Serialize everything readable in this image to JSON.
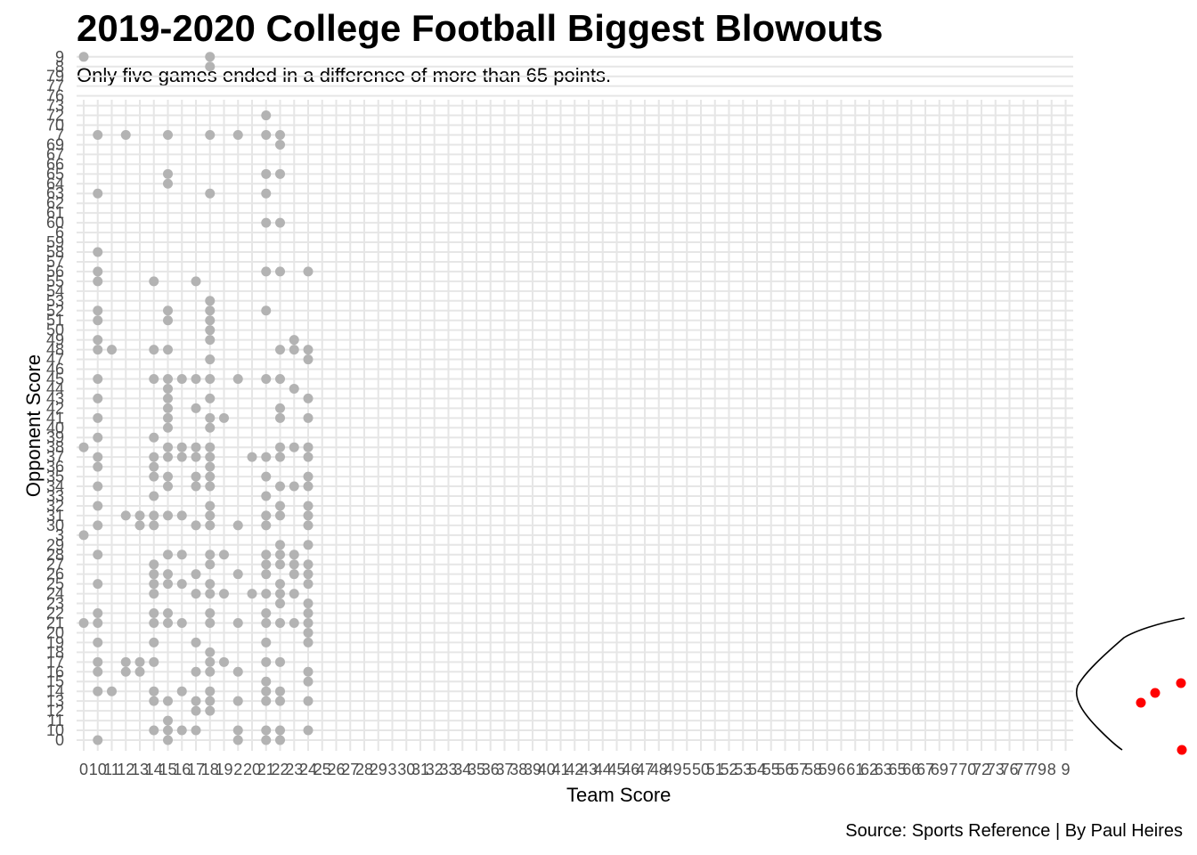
{
  "chart_data": {
    "type": "scatter",
    "title": "2019-2020 College Football Biggest Blowouts",
    "subtitle": "Only five games ended in a difference of more than 65 points.",
    "caption": "Source: Sports Reference | By Paul Heires",
    "xlabel": "Team Score",
    "ylabel": "Opponent Score",
    "x_categories": [
      "0",
      "10",
      "11",
      "12",
      "13",
      "14",
      "15",
      "16",
      "17",
      "18",
      "19",
      "2",
      "20",
      "21",
      "22",
      "23",
      "24",
      "25",
      "26",
      "27",
      "28",
      "29",
      "3",
      "30",
      "31",
      "32",
      "33",
      "34",
      "35",
      "36",
      "37",
      "38",
      "39",
      "40",
      "41",
      "42",
      "43",
      "44",
      "45",
      "46",
      "47",
      "48",
      "49",
      "5",
      "50",
      "51",
      "52",
      "53",
      "54",
      "55",
      "56",
      "57",
      "58",
      "59",
      "6",
      "61",
      "62",
      "63",
      "65",
      "66",
      "67",
      "69",
      "7",
      "70",
      "72",
      "73",
      "76",
      "77",
      "79",
      "8",
      "9"
    ],
    "y_categories": [
      "0",
      "10",
      "11",
      "12",
      "13",
      "14",
      "15",
      "16",
      "17",
      "18",
      "19",
      "20",
      "21",
      "22",
      "23",
      "24",
      "25",
      "26",
      "27",
      "28",
      "29",
      "3",
      "30",
      "31",
      "32",
      "33",
      "34",
      "35",
      "36",
      "37",
      "38",
      "39",
      "40",
      "41",
      "42",
      "43",
      "44",
      "45",
      "46",
      "47",
      "48",
      "49",
      "50",
      "51",
      "52",
      "53",
      "54",
      "55",
      "56",
      "57",
      "58",
      "59",
      "6",
      "60",
      "61",
      "62",
      "63",
      "64",
      "65",
      "66",
      "67",
      "69",
      "7",
      "70",
      "72",
      "73",
      "76",
      "77",
      "79",
      "8",
      "9"
    ],
    "grid": true,
    "colors": {
      "normal": "#b3b3b3",
      "highlight": "#ff0000",
      "grid": "#e6e6e6",
      "annotation": "#000000"
    },
    "series": [
      {
        "color": "#b3b3b3",
        "points": [
          [
            "0",
            3
          ],
          [
            "0",
            21
          ],
          [
            "0",
            38
          ],
          [
            "0",
            5
          ],
          [
            "0",
            9
          ],
          [
            "10",
            0
          ],
          [
            "10",
            14
          ],
          [
            "10",
            16
          ],
          [
            "10",
            17
          ],
          [
            "10",
            19
          ],
          [
            "10",
            21
          ],
          [
            "10",
            22
          ],
          [
            "10",
            25
          ],
          [
            "10",
            28
          ],
          [
            "10",
            30
          ],
          [
            "10",
            32
          ],
          [
            "10",
            34
          ],
          [
            "10",
            36
          ],
          [
            "10",
            37
          ],
          [
            "10",
            39
          ],
          [
            "10",
            41
          ],
          [
            "10",
            43
          ],
          [
            "10",
            45
          ],
          [
            "10",
            48
          ],
          [
            "10",
            49
          ],
          [
            "10",
            51
          ],
          [
            "10",
            52
          ],
          [
            "10",
            55
          ],
          [
            "10",
            56
          ],
          [
            "10",
            58
          ],
          [
            "10",
            63
          ],
          [
            "10",
            7
          ],
          [
            "11",
            14
          ],
          [
            "11",
            48
          ],
          [
            "12",
            16
          ],
          [
            "12",
            17
          ],
          [
            "12",
            31
          ],
          [
            "12",
            7
          ],
          [
            "13",
            16
          ],
          [
            "13",
            17
          ],
          [
            "13",
            30
          ],
          [
            "13",
            31
          ],
          [
            "14",
            10
          ],
          [
            "14",
            13
          ],
          [
            "14",
            14
          ],
          [
            "14",
            17
          ],
          [
            "14",
            19
          ],
          [
            "14",
            21
          ],
          [
            "14",
            22
          ],
          [
            "14",
            24
          ],
          [
            "14",
            25
          ],
          [
            "14",
            26
          ],
          [
            "14",
            27
          ],
          [
            "14",
            30
          ],
          [
            "14",
            31
          ],
          [
            "14",
            33
          ],
          [
            "14",
            35
          ],
          [
            "14",
            36
          ],
          [
            "14",
            37
          ],
          [
            "14",
            39
          ],
          [
            "14",
            45
          ],
          [
            "14",
            48
          ],
          [
            "14",
            55
          ],
          [
            "15",
            0
          ],
          [
            "15",
            10
          ],
          [
            "15",
            11
          ],
          [
            "15",
            13
          ],
          [
            "15",
            21
          ],
          [
            "15",
            22
          ],
          [
            "15",
            25
          ],
          [
            "15",
            26
          ],
          [
            "15",
            28
          ],
          [
            "15",
            31
          ],
          [
            "15",
            34
          ],
          [
            "15",
            35
          ],
          [
            "15",
            37
          ],
          [
            "15",
            38
          ],
          [
            "15",
            40
          ],
          [
            "15",
            41
          ],
          [
            "15",
            42
          ],
          [
            "15",
            43
          ],
          [
            "15",
            44
          ],
          [
            "15",
            45
          ],
          [
            "15",
            48
          ],
          [
            "15",
            51
          ],
          [
            "15",
            52
          ],
          [
            "15",
            64
          ],
          [
            "15",
            65
          ],
          [
            "15",
            7
          ],
          [
            "15",
            74
          ],
          [
            "16",
            10
          ],
          [
            "16",
            14
          ],
          [
            "16",
            21
          ],
          [
            "16",
            25
          ],
          [
            "16",
            28
          ],
          [
            "16",
            31
          ],
          [
            "16",
            37
          ],
          [
            "16",
            38
          ],
          [
            "16",
            45
          ],
          [
            "17",
            10
          ],
          [
            "17",
            12
          ],
          [
            "17",
            13
          ],
          [
            "17",
            16
          ],
          [
            "17",
            19
          ],
          [
            "17",
            24
          ],
          [
            "17",
            26
          ],
          [
            "17",
            30
          ],
          [
            "17",
            34
          ],
          [
            "17",
            35
          ],
          [
            "17",
            37
          ],
          [
            "17",
            38
          ],
          [
            "17",
            42
          ],
          [
            "17",
            45
          ],
          [
            "17",
            55
          ],
          [
            "18",
            12
          ],
          [
            "18",
            13
          ],
          [
            "18",
            14
          ],
          [
            "18",
            16
          ],
          [
            "18",
            17
          ],
          [
            "18",
            18
          ],
          [
            "18",
            21
          ],
          [
            "18",
            22
          ],
          [
            "18",
            24
          ],
          [
            "18",
            25
          ],
          [
            "18",
            27
          ],
          [
            "18",
            28
          ],
          [
            "18",
            30
          ],
          [
            "18",
            31
          ],
          [
            "18",
            32
          ],
          [
            "18",
            34
          ],
          [
            "18",
            35
          ],
          [
            "18",
            36
          ],
          [
            "18",
            37
          ],
          [
            "18",
            38
          ],
          [
            "18",
            40
          ],
          [
            "18",
            41
          ],
          [
            "18",
            43
          ],
          [
            "18",
            45
          ],
          [
            "18",
            47
          ],
          [
            "18",
            49
          ],
          [
            "18",
            50
          ],
          [
            "18",
            51
          ],
          [
            "18",
            52
          ],
          [
            "18",
            53
          ],
          [
            "18",
            63
          ],
          [
            "18",
            7
          ],
          [
            "18",
            8
          ],
          [
            "18",
            9
          ],
          [
            "19",
            17
          ],
          [
            "19",
            24
          ],
          [
            "19",
            28
          ],
          [
            "19",
            41
          ],
          [
            "2",
            0
          ],
          [
            "2",
            10
          ],
          [
            "2",
            13
          ],
          [
            "2",
            16
          ],
          [
            "2",
            21
          ],
          [
            "2",
            26
          ],
          [
            "2",
            30
          ],
          [
            "2",
            45
          ],
          [
            "2",
            7
          ],
          [
            "20",
            24
          ],
          [
            "20",
            37
          ],
          [
            "21",
            0
          ],
          [
            "21",
            10
          ],
          [
            "21",
            13
          ],
          [
            "21",
            14
          ],
          [
            "21",
            15
          ],
          [
            "21",
            17
          ],
          [
            "21",
            19
          ],
          [
            "21",
            21
          ],
          [
            "21",
            22
          ],
          [
            "21",
            24
          ],
          [
            "21",
            26
          ],
          [
            "21",
            27
          ],
          [
            "21",
            28
          ],
          [
            "21",
            30
          ],
          [
            "21",
            31
          ],
          [
            "21",
            33
          ],
          [
            "21",
            35
          ],
          [
            "21",
            37
          ],
          [
            "21",
            45
          ],
          [
            "21",
            52
          ],
          [
            "21",
            56
          ],
          [
            "21",
            60
          ],
          [
            "21",
            63
          ],
          [
            "21",
            65
          ],
          [
            "21",
            7
          ],
          [
            "21",
            72
          ],
          [
            "22",
            0
          ],
          [
            "22",
            10
          ],
          [
            "22",
            13
          ],
          [
            "22",
            14
          ],
          [
            "22",
            17
          ],
          [
            "22",
            21
          ],
          [
            "22",
            23
          ],
          [
            "22",
            24
          ],
          [
            "22",
            25
          ],
          [
            "22",
            27
          ],
          [
            "22",
            28
          ],
          [
            "22",
            29
          ],
          [
            "22",
            31
          ],
          [
            "22",
            32
          ],
          [
            "22",
            34
          ],
          [
            "22",
            37
          ],
          [
            "22",
            38
          ],
          [
            "22",
            41
          ],
          [
            "22",
            42
          ],
          [
            "22",
            45
          ],
          [
            "22",
            48
          ],
          [
            "22",
            56
          ],
          [
            "22",
            60
          ],
          [
            "22",
            65
          ],
          [
            "22",
            69
          ],
          [
            "22",
            7
          ],
          [
            "23",
            21
          ],
          [
            "23",
            24
          ],
          [
            "23",
            26
          ],
          [
            "23",
            27
          ],
          [
            "23",
            28
          ],
          [
            "23",
            34
          ],
          [
            "23",
            38
          ],
          [
            "23",
            44
          ],
          [
            "23",
            48
          ],
          [
            "23",
            49
          ],
          [
            "24",
            10
          ],
          [
            "24",
            13
          ],
          [
            "24",
            15
          ],
          [
            "24",
            16
          ],
          [
            "24",
            19
          ],
          [
            "24",
            20
          ],
          [
            "24",
            21
          ],
          [
            "24",
            22
          ],
          [
            "24",
            23
          ],
          [
            "24",
            25
          ],
          [
            "24",
            26
          ],
          [
            "24",
            27
          ],
          [
            "24",
            29
          ],
          [
            "24",
            30
          ],
          [
            "24",
            31
          ],
          [
            "24",
            32
          ],
          [
            "24",
            34
          ],
          [
            "24",
            35
          ],
          [
            "24",
            37
          ],
          [
            "24",
            38
          ],
          [
            "24",
            41
          ],
          [
            "24",
            43
          ],
          [
            "24",
            47
          ],
          [
            "24",
            48
          ],
          [
            "24",
            56
          ]
        ]
      },
      {
        "color": "#ff0000",
        "points": [
          [
            1281,
            789
          ],
          [
            1297,
            778
          ],
          [
            1326,
            767
          ],
          [
            1327,
            842
          ]
        ]
      }
    ],
    "annotation": "curve-highlight"
  }
}
